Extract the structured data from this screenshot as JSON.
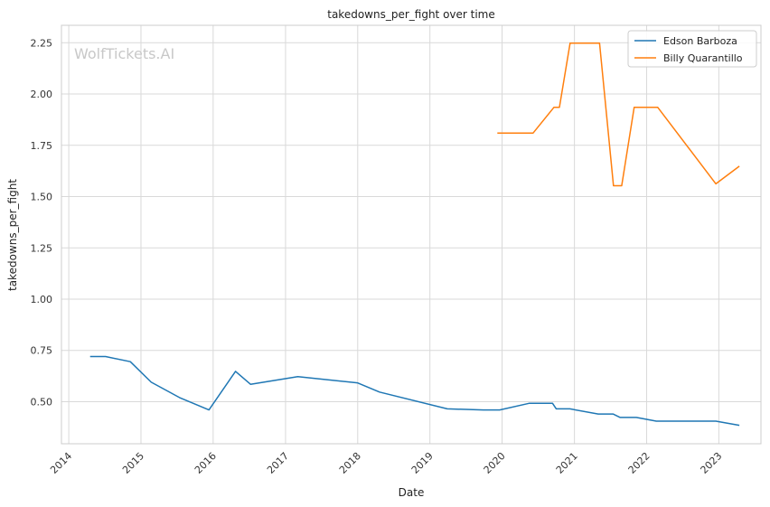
{
  "chart_data": {
    "type": "line",
    "title": "takedowns_per_fight over time",
    "xlabel": "Date",
    "ylabel": "takedowns_per_fight",
    "watermark": "WolfTickets.AI",
    "x_ticks": [
      "2014",
      "2015",
      "2016",
      "2017",
      "2018",
      "2019",
      "2020",
      "2021",
      "2022",
      "2023"
    ],
    "y_ticks": [
      "0.50",
      "0.75",
      "1.00",
      "1.25",
      "1.50",
      "1.75",
      "2.00",
      "2.25"
    ],
    "xlim": [
      "2013-11-25",
      "2023-08-02"
    ],
    "ylim": [
      0.295,
      2.335
    ],
    "grid": true,
    "legend_position": "top-right",
    "colors": {
      "grid": "#d9d9d9",
      "frame": "#cccccc",
      "watermark": "#c8c8c8"
    },
    "series": [
      {
        "name": "Edson Barboza",
        "color": "#1f77b4",
        "points": [
          [
            "2014-04-19",
            0.72
          ],
          [
            "2014-07-06",
            0.72
          ],
          [
            "2014-11-08",
            0.695
          ],
          [
            "2015-02-22",
            0.595
          ],
          [
            "2015-07-15",
            0.52
          ],
          [
            "2015-12-11",
            0.46
          ],
          [
            "2016-04-23",
            0.648
          ],
          [
            "2016-07-08",
            0.585
          ],
          [
            "2017-03-04",
            0.622
          ],
          [
            "2017-12-30",
            0.592
          ],
          [
            "2018-04-21",
            0.547
          ],
          [
            "2019-03-30",
            0.465
          ],
          [
            "2019-09-28",
            0.46
          ],
          [
            "2019-12-20",
            0.46
          ],
          [
            "2020-05-16",
            0.492
          ],
          [
            "2020-09-12",
            0.492
          ],
          [
            "2020-10-01",
            0.465
          ],
          [
            "2020-12-09",
            0.465
          ],
          [
            "2021-05-01",
            0.44
          ],
          [
            "2021-07-15",
            0.44
          ],
          [
            "2021-08-20",
            0.423
          ],
          [
            "2021-11-10",
            0.423
          ],
          [
            "2022-02-19",
            0.405
          ],
          [
            "2022-12-17",
            0.405
          ],
          [
            "2023-04-15",
            0.385
          ]
        ]
      },
      {
        "name": "Billy Quarantillo",
        "color": "#ff7f0e",
        "points": [
          [
            "2019-12-08",
            1.81
          ],
          [
            "2020-06-06",
            1.81
          ],
          [
            "2020-09-19",
            1.935
          ],
          [
            "2020-10-17",
            1.935
          ],
          [
            "2020-12-10",
            2.248
          ],
          [
            "2021-05-08",
            2.248
          ],
          [
            "2021-07-17",
            1.553
          ],
          [
            "2021-08-28",
            1.553
          ],
          [
            "2021-10-30",
            1.935
          ],
          [
            "2022-02-26",
            1.935
          ],
          [
            "2022-12-17",
            1.562
          ],
          [
            "2023-04-15",
            1.648
          ]
        ]
      }
    ]
  }
}
